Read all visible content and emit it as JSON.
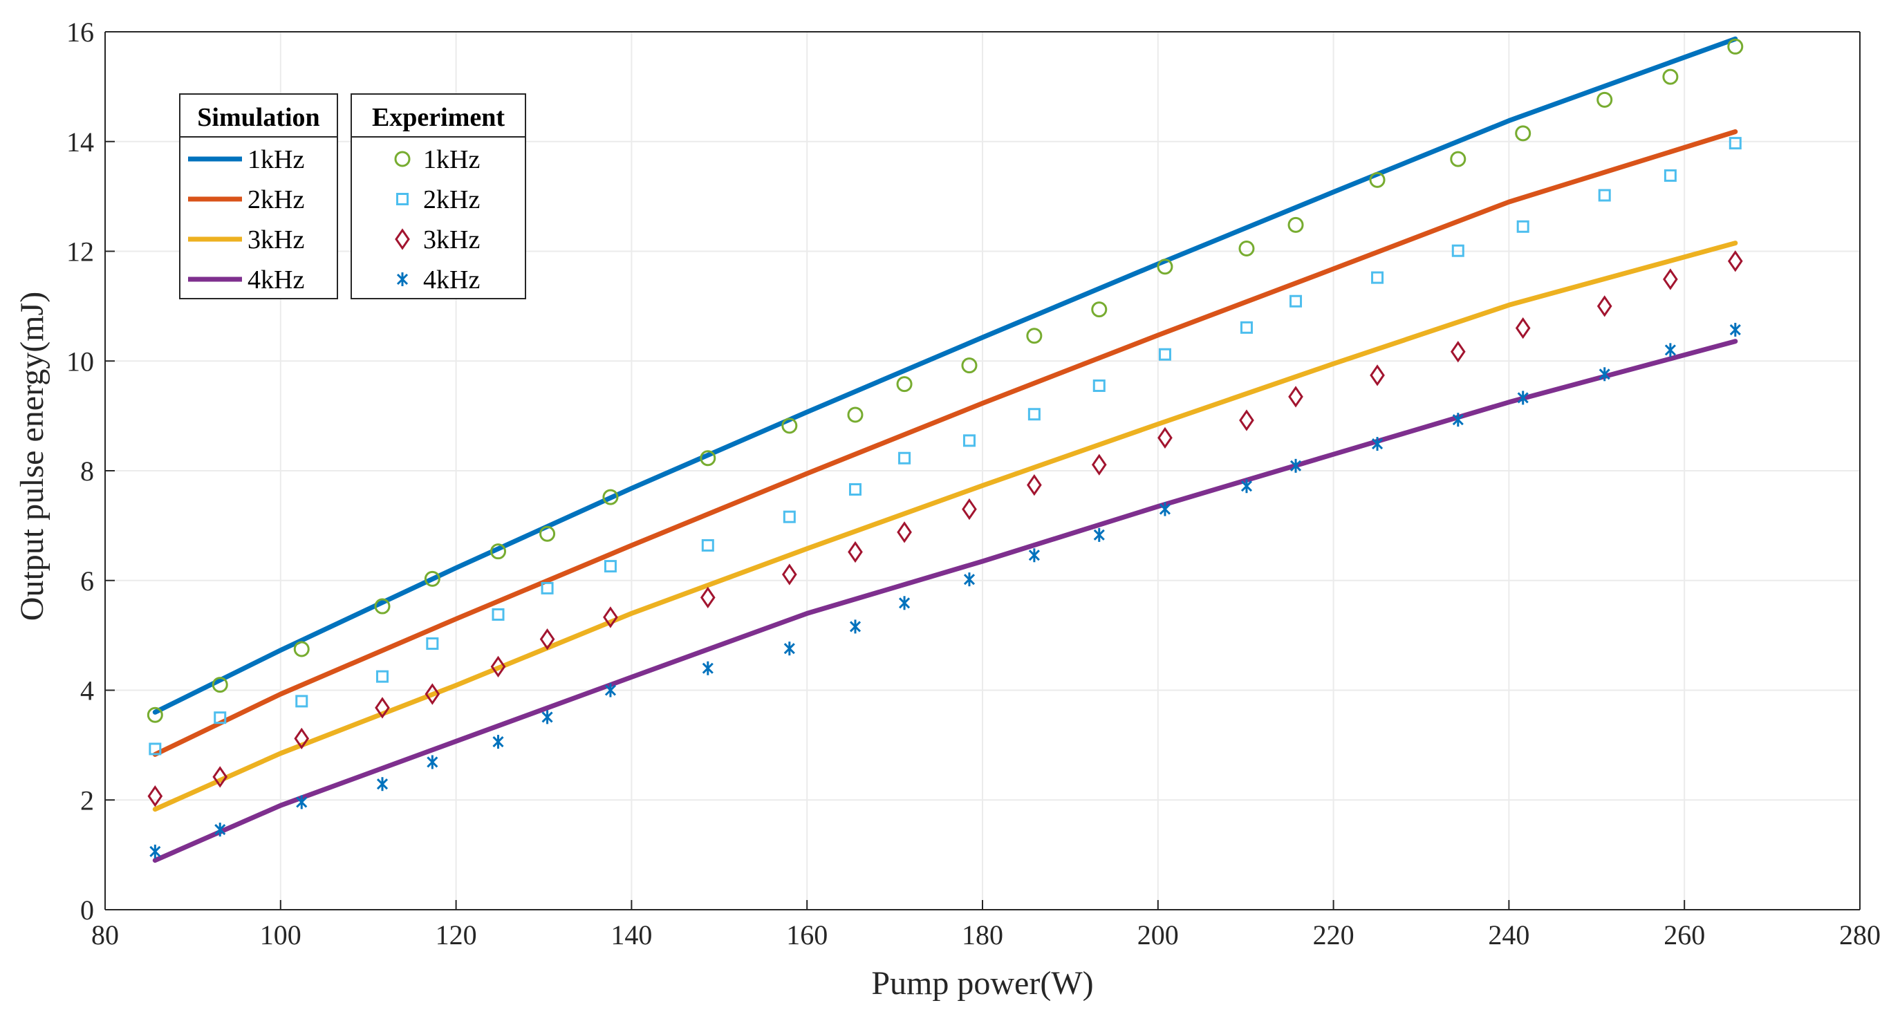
{
  "chart_data": {
    "type": "line",
    "title": "",
    "xlabel": "Pump power(W)",
    "ylabel": "Output pulse energy(mJ)",
    "xlim": [
      80,
      280
    ],
    "ylim": [
      0,
      16
    ],
    "xticks": [
      "80",
      "100",
      "120",
      "140",
      "160",
      "180",
      "200",
      "220",
      "240",
      "260",
      "280"
    ],
    "yticks": [
      "0",
      "2",
      "4",
      "6",
      "8",
      "10",
      "12",
      "14",
      "16"
    ],
    "grid": true,
    "legend": {
      "placement": "top-left",
      "simulation_title": "Simulation",
      "experiment_title": "Experiment"
    },
    "simulation": [
      {
        "name": "1kHz",
        "color": "#0072bd",
        "x": [
          85.7,
          100,
          120,
          140,
          160,
          180,
          200,
          220,
          240,
          265.8
        ],
        "y": [
          3.6,
          4.73,
          6.23,
          7.68,
          9.07,
          10.43,
          11.77,
          13.08,
          14.38,
          15.87
        ]
      },
      {
        "name": "2kHz",
        "color": "#d95319",
        "x": [
          85.7,
          100,
          120,
          140,
          160,
          180,
          200,
          220,
          240,
          265.8
        ],
        "y": [
          2.83,
          3.93,
          5.3,
          6.64,
          7.95,
          9.23,
          10.47,
          11.68,
          12.9,
          14.18
        ]
      },
      {
        "name": "3kHz",
        "color": "#edb120",
        "x": [
          85.7,
          100,
          120,
          140,
          160,
          180,
          200,
          220,
          240,
          265.8
        ],
        "y": [
          1.83,
          2.85,
          4.09,
          5.4,
          6.58,
          7.73,
          8.85,
          9.95,
          11.02,
          12.15
        ]
      },
      {
        "name": "4kHz",
        "color": "#7e2f8e",
        "x": [
          85.7,
          100,
          120,
          140,
          160,
          180,
          200,
          220,
          240,
          265.8
        ],
        "y": [
          0.9,
          1.9,
          3.07,
          4.24,
          5.4,
          6.35,
          7.35,
          8.3,
          9.25,
          10.36
        ]
      }
    ],
    "experiment": [
      {
        "name": "1kHz",
        "marker": "circle",
        "color": "#77ac30",
        "x": [
          85.7,
          93.1,
          102.4,
          111.6,
          117.3,
          124.8,
          130.4,
          137.6,
          148.7,
          158,
          165.5,
          171.1,
          178.5,
          185.9,
          193.3,
          200.8,
          210.1,
          215.7,
          225,
          234.2,
          241.6,
          250.9,
          258.4,
          265.8
        ],
        "y": [
          3.55,
          4.1,
          4.75,
          5.53,
          6.03,
          6.53,
          6.85,
          7.52,
          8.23,
          8.82,
          9.02,
          9.58,
          9.92,
          10.46,
          10.94,
          11.72,
          12.05,
          12.48,
          13.3,
          13.68,
          14.15,
          14.76,
          15.18,
          15.73
        ]
      },
      {
        "name": "2kHz",
        "marker": "square",
        "color": "#4dbeee",
        "x": [
          85.7,
          93.1,
          102.4,
          111.6,
          117.3,
          124.8,
          130.4,
          137.6,
          148.7,
          158,
          165.5,
          171.1,
          178.5,
          185.9,
          193.3,
          200.8,
          210.1,
          215.7,
          225,
          234.2,
          241.6,
          250.9,
          258.4,
          265.8
        ],
        "y": [
          2.93,
          3.5,
          3.8,
          4.25,
          4.85,
          5.38,
          5.86,
          6.26,
          6.64,
          7.16,
          7.66,
          8.23,
          8.55,
          9.03,
          9.55,
          10.12,
          10.61,
          11.09,
          11.52,
          12.01,
          12.45,
          13.02,
          13.38,
          13.97
        ]
      },
      {
        "name": "3kHz",
        "marker": "diamond",
        "color": "#a2142f",
        "x": [
          85.7,
          93.1,
          102.4,
          111.6,
          117.3,
          124.8,
          130.4,
          137.6,
          148.7,
          158,
          165.5,
          171.1,
          178.5,
          185.9,
          193.3,
          200.8,
          210.1,
          215.7,
          225,
          234.2,
          241.6,
          250.9,
          258.4,
          265.8
        ],
        "y": [
          2.07,
          2.42,
          3.12,
          3.68,
          3.93,
          4.43,
          4.93,
          5.33,
          5.69,
          6.11,
          6.52,
          6.88,
          7.3,
          7.74,
          8.11,
          8.6,
          8.92,
          9.35,
          9.74,
          10.17,
          10.6,
          11.0,
          11.49,
          11.82
        ]
      },
      {
        "name": "4kHz",
        "marker": "asterisk",
        "color": "#0072bd",
        "x": [
          85.7,
          93.1,
          102.4,
          111.6,
          117.3,
          124.8,
          130.4,
          137.6,
          148.7,
          158,
          165.5,
          171.1,
          178.5,
          185.9,
          193.3,
          200.8,
          210.1,
          215.7,
          225,
          234.2,
          241.6,
          250.9,
          258.4,
          265.8
        ],
        "y": [
          1.06,
          1.46,
          1.96,
          2.29,
          2.69,
          3.06,
          3.51,
          4.0,
          4.4,
          4.76,
          5.16,
          5.59,
          6.02,
          6.46,
          6.83,
          7.3,
          7.72,
          8.09,
          8.49,
          8.93,
          9.33,
          9.76,
          10.2,
          10.57
        ]
      }
    ]
  }
}
